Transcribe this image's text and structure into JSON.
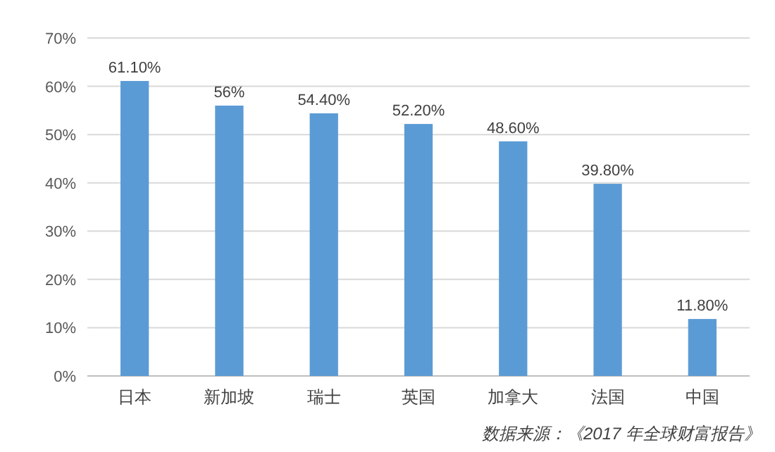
{
  "chart_data": {
    "type": "bar",
    "categories": [
      "日本",
      "新加坡",
      "瑞士",
      "英国",
      "加拿大",
      "法国",
      "中国"
    ],
    "values": [
      61.1,
      56,
      54.4,
      52.2,
      48.6,
      39.8,
      11.8
    ],
    "value_labels": [
      "61.10%",
      "56%",
      "54.40%",
      "52.20%",
      "48.60%",
      "39.80%",
      "11.80%"
    ],
    "color": "#5b9bd5",
    "ylim": [
      0,
      70
    ],
    "yticks": [
      {
        "value": 0,
        "label": "0%"
      },
      {
        "value": 10,
        "label": "10%"
      },
      {
        "value": 20,
        "label": "20%"
      },
      {
        "value": 30,
        "label": "30%"
      },
      {
        "value": 40,
        "label": "40%"
      },
      {
        "value": 50,
        "label": "50%"
      },
      {
        "value": 60,
        "label": "60%"
      },
      {
        "value": 70,
        "label": "70%"
      }
    ],
    "grid": "y",
    "annotations": [
      "数据来源：《2017 年全球财富报告》"
    ]
  }
}
